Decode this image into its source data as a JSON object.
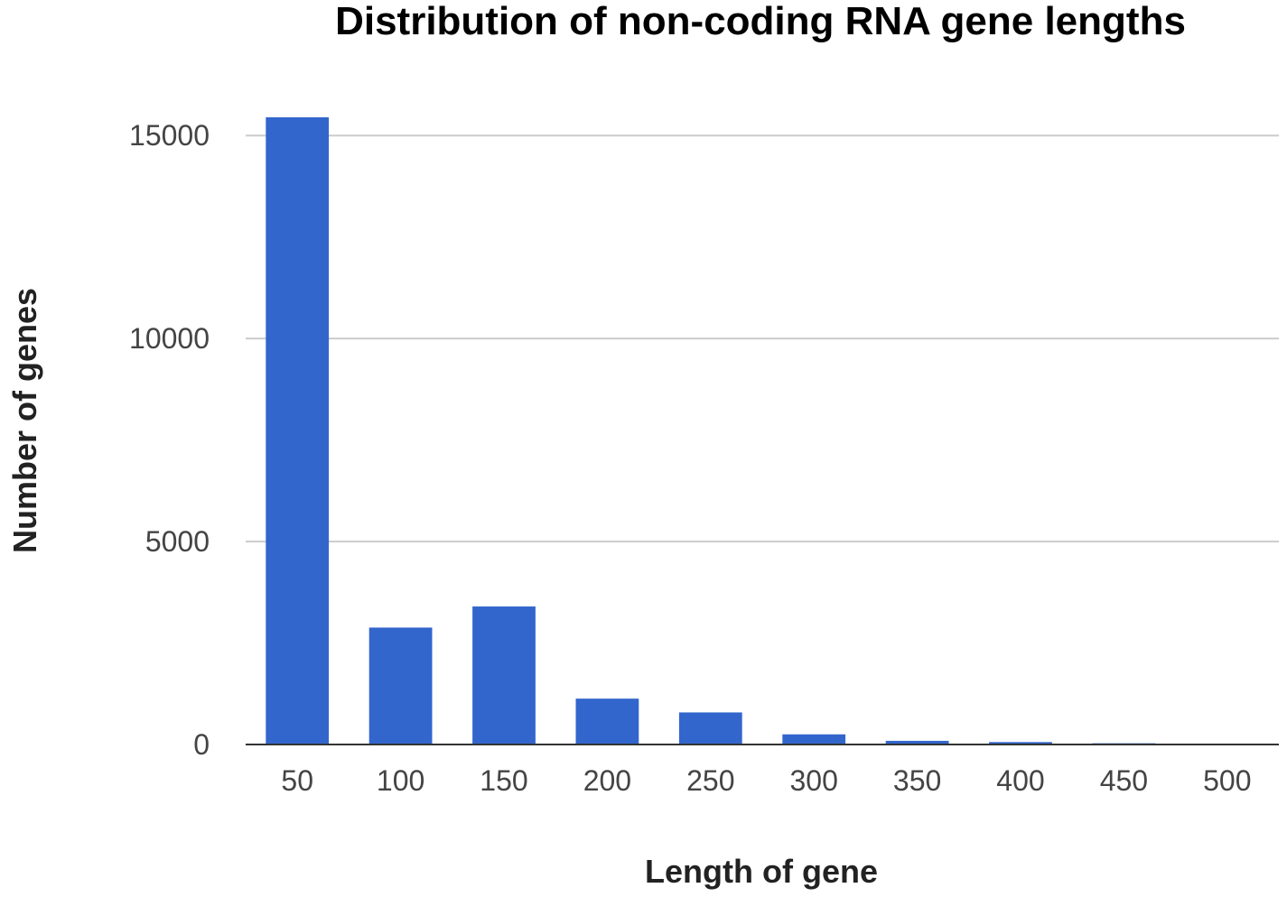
{
  "chart_data": {
    "type": "bar",
    "title": "Distribution of non-coding RNA gene lengths",
    "xlabel": "Length of gene",
    "ylabel": "Number of genes",
    "categories": [
      "50",
      "100",
      "150",
      "200",
      "250",
      "300",
      "350",
      "400",
      "450",
      "500"
    ],
    "series": [
      {
        "values": [
          15450,
          2880,
          3400,
          1130,
          790,
          250,
          90,
          60,
          30,
          15
        ]
      }
    ],
    "ylim": [
      0,
      15450
    ],
    "yticks": [
      0,
      5000,
      10000,
      15000
    ],
    "ytick_labels": [
      "0",
      "5000",
      "10000",
      "15000"
    ],
    "grid": true,
    "legend": "none",
    "colors": {
      "bar": "#3366cc",
      "grid": "#cccccc",
      "baseline": "#333333"
    }
  }
}
